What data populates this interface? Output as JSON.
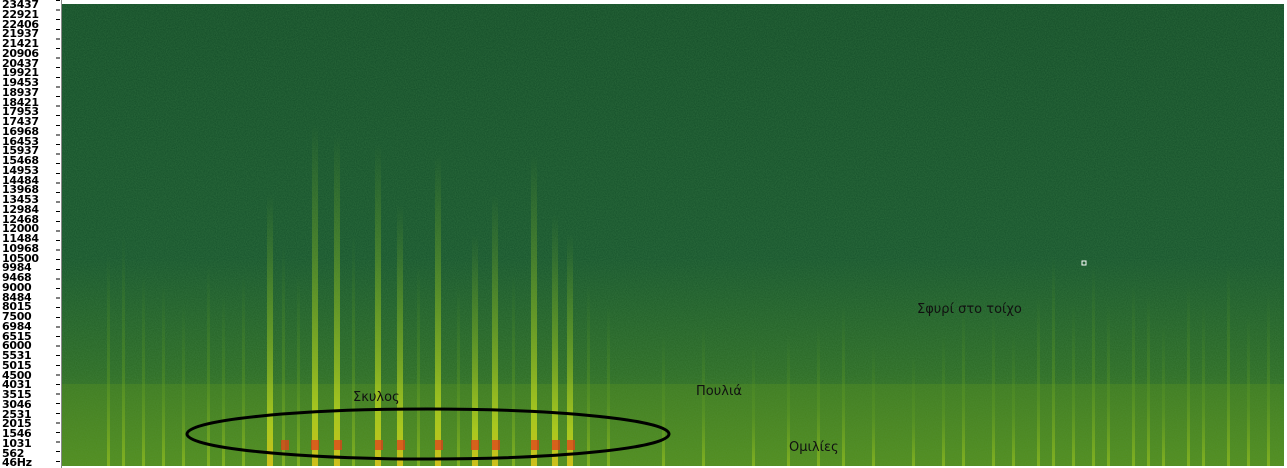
{
  "axis": {
    "frequency_ticks": [
      "23437",
      "22921",
      "22406",
      "21937",
      "21421",
      "20906",
      "20437",
      "19921",
      "19453",
      "18937",
      "18421",
      "17953",
      "17437",
      "16968",
      "16453",
      "15937",
      "15468",
      "14953",
      "14484",
      "13968",
      "13453",
      "12984",
      "12468",
      "12000",
      "11484",
      "10968",
      "10500",
      "9984",
      "9468",
      "9000",
      "8484",
      "8015",
      "7500",
      "6984",
      "6515",
      "6000",
      "5531",
      "5015",
      "4500",
      "4031",
      "3515",
      "3046",
      "2531",
      "2015",
      "1546",
      "1031",
      "562",
      "46Hz"
    ]
  },
  "spectrogram": {
    "colors": {
      "background": "#15502a",
      "mid": "#3f7d1a",
      "bright": "#b6d11a",
      "hot": "#e0401b"
    }
  },
  "annotations": {
    "dog": "Σκυλος",
    "birds": "Πουλιά",
    "talk": "Ομιλίες",
    "hammer": "Σφυρί στο τοίχο"
  }
}
